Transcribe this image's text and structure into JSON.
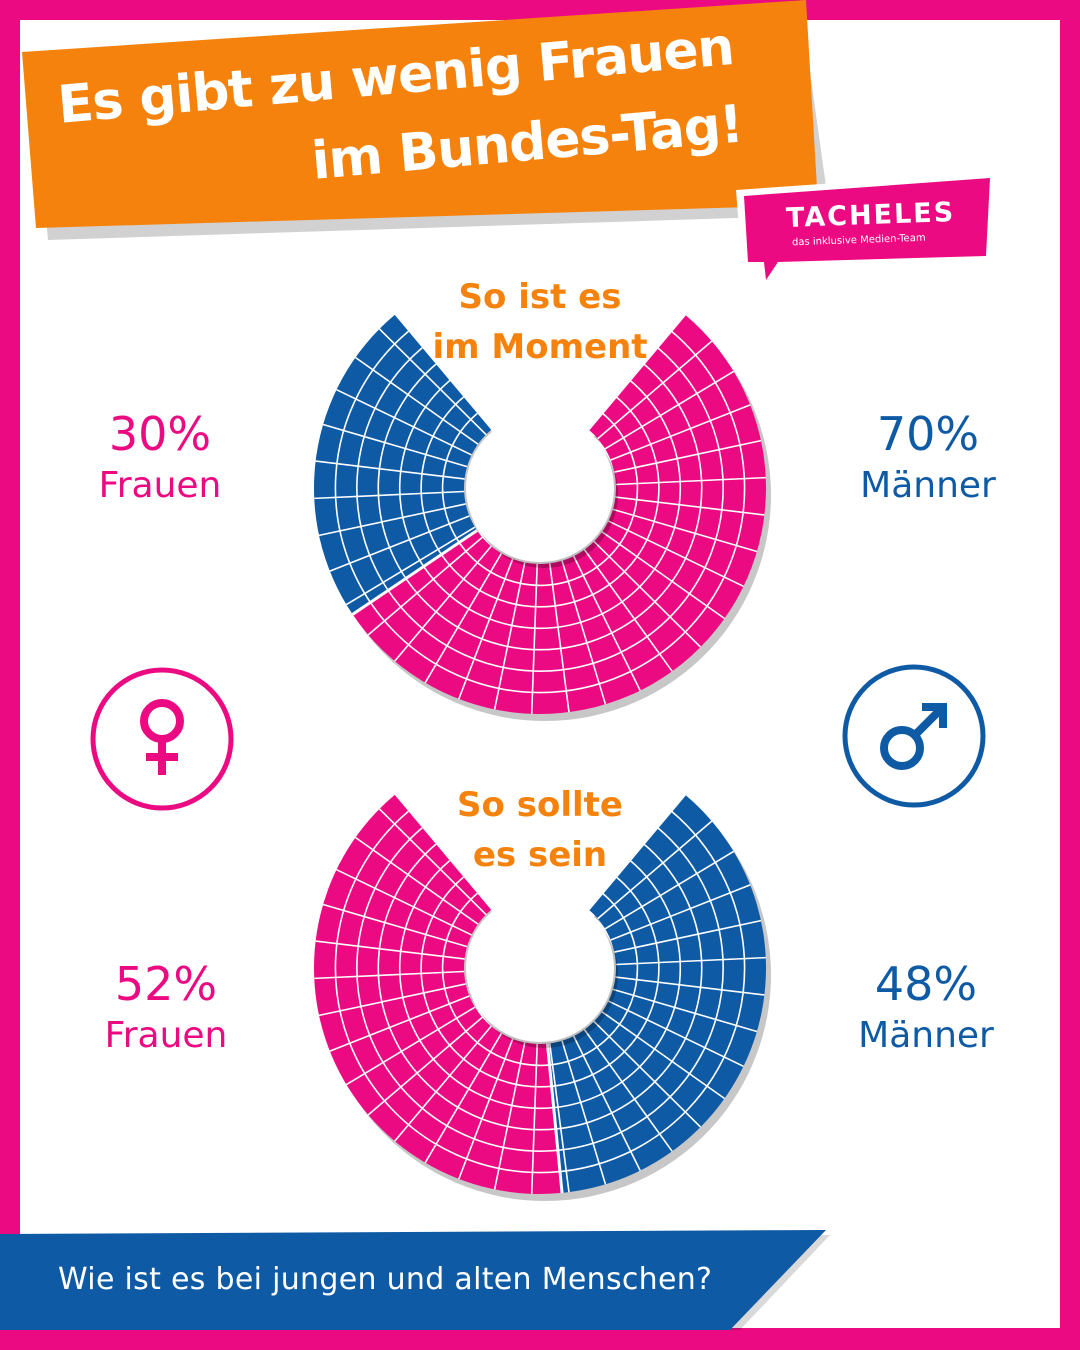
{
  "title": {
    "line1": "Es gibt zu wenig Frauen",
    "line2": "im Bundes-Tag!"
  },
  "logo": {
    "name": "TACHELES",
    "tagline": "das inklusive Medien-Team"
  },
  "colors": {
    "pink": "#ec0a82",
    "blue": "#0f5aa5",
    "orange": "#f5820c",
    "white": "#ffffff"
  },
  "icons": {
    "female": "female-symbol-icon",
    "male": "male-symbol-icon"
  },
  "footer": {
    "question": "Wie ist es bei jungen und alten Menschen?"
  },
  "chart_data": [
    {
      "type": "pie",
      "title_line1": "So ist es",
      "title_line2": "im Moment",
      "slices": [
        {
          "label": "Frauen",
          "value": 30,
          "display": "30%",
          "color": "#0f5aa5"
        },
        {
          "label": "Männer",
          "value": 70,
          "display": "70%",
          "color": "#ec0a82"
        }
      ],
      "left_label": {
        "percent": "30%",
        "text": "Frauen"
      },
      "right_label": {
        "percent": "70%",
        "text": "Männer"
      }
    },
    {
      "type": "pie",
      "title_line1": "So sollte",
      "title_line2": "es sein",
      "slices": [
        {
          "label": "Frauen",
          "value": 52,
          "display": "52%",
          "color": "#ec0a82"
        },
        {
          "label": "Männer",
          "value": 48,
          "display": "48%",
          "color": "#0f5aa5"
        }
      ],
      "left_label": {
        "percent": "52%",
        "text": "Frauen"
      },
      "right_label": {
        "percent": "48%",
        "text": "Männer"
      }
    }
  ]
}
